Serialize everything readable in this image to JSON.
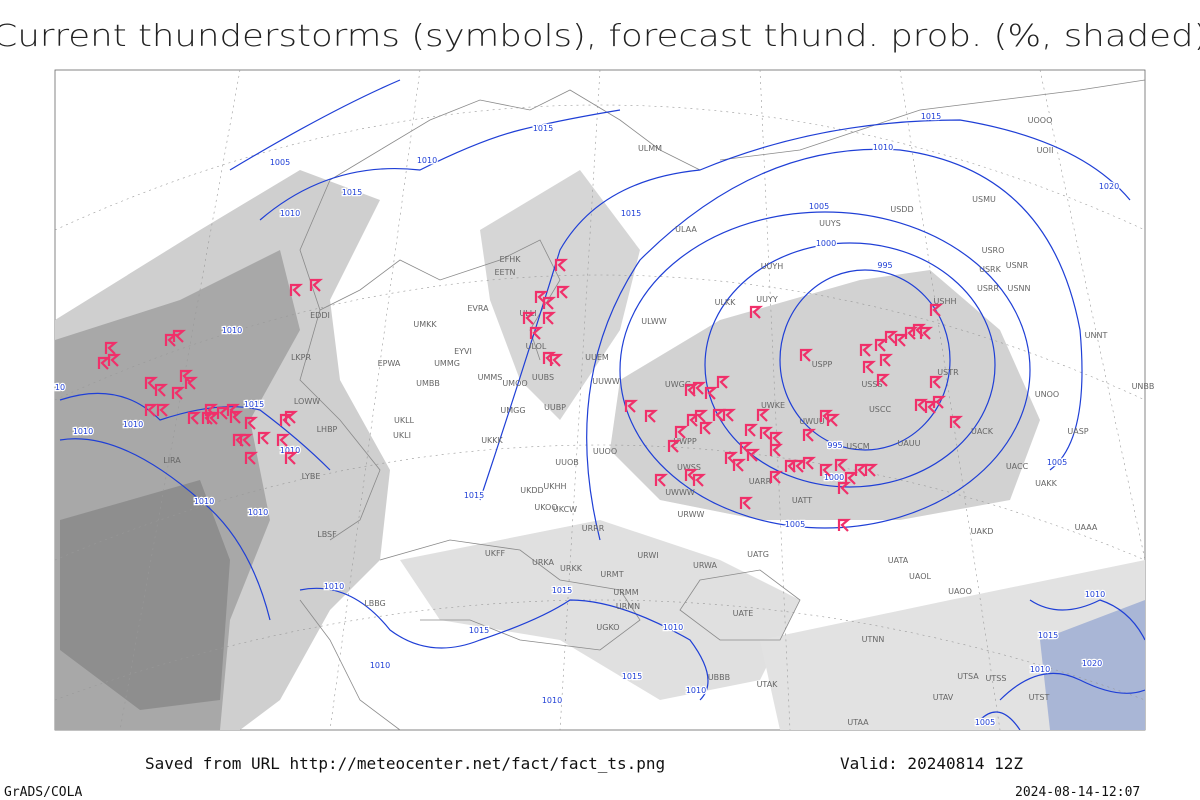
{
  "header": {
    "title": "Current thunderstorms (symbols), forecast thund. prob. (%, shaded)"
  },
  "footer": {
    "source": "Saved from URL http://meteocenter.net/fact/fact_ts.png",
    "valid": "Valid: 20240814 12Z",
    "software": "GrADS/COLA",
    "timestamp": "2024-08-14-12:07"
  },
  "map": {
    "isobar_labels": [
      "1015",
      "1010",
      "1005",
      "1015",
      "1010",
      "1010",
      "1015",
      "1010",
      "1010",
      "1010",
      "1015",
      "1010",
      "1010",
      "1010",
      "1015",
      "1015",
      "1010",
      "1010",
      "1010",
      "1015",
      "1010",
      "1015",
      "1010",
      "1015",
      "1005",
      "1000",
      "995",
      "995",
      "1000",
      "1005",
      "1005",
      "1020",
      "1010",
      "1015",
      "1020",
      "1010",
      "1005",
      "10"
    ],
    "station_labels": [
      "ULMM",
      "UOOO",
      "UOII",
      "EFHK",
      "EETN",
      "EVRA",
      "EDDI",
      "UMKK",
      "ULLI",
      "ULOL",
      "ULAA",
      "ULWW",
      "ULKK",
      "UUYY",
      "UUYH",
      "UUYS",
      "USDD",
      "USMU",
      "USRO",
      "USNR",
      "USRK",
      "USRR",
      "USNN",
      "USHH",
      "EYVI",
      "UMMG",
      "EPWA",
      "LKPR",
      "UMBB",
      "UMMS",
      "UMOO",
      "UUBS",
      "UUEM",
      "UUWW",
      "UWGG",
      "USPP",
      "USSS",
      "USTR",
      "UNNT",
      "UNBB",
      "UNOO",
      "LOWW",
      "UMGG",
      "UUBP",
      "UKLL",
      "UKLI",
      "LHBP",
      "UKKK",
      "UWPP",
      "UWKE",
      "USCC",
      "UWUU",
      "UACK",
      "UASP",
      "USCM",
      "UAUU",
      "UUOO",
      "LIRA",
      "UUOB",
      "UWSS",
      "UACC",
      "LYBE",
      "UARR",
      "UKHH",
      "UKDD",
      "UAKK",
      "UWWW",
      "UATT",
      "UKOO",
      "UKCW",
      "URWW",
      "URRR",
      "UAKD",
      "UAAA",
      "LBSF",
      "UKFF",
      "UATG",
      "URWI",
      "URKA",
      "URWA",
      "URKK",
      "UATA",
      "URMT",
      "UAOL",
      "UAOO",
      "URMM",
      "LBBG",
      "URMN",
      "UATE",
      "UGKO",
      "UTNN",
      "UTSA",
      "UTSS",
      "UBBB",
      "UTAK",
      "UTAV",
      "UTST",
      "UTAA"
    ]
  }
}
